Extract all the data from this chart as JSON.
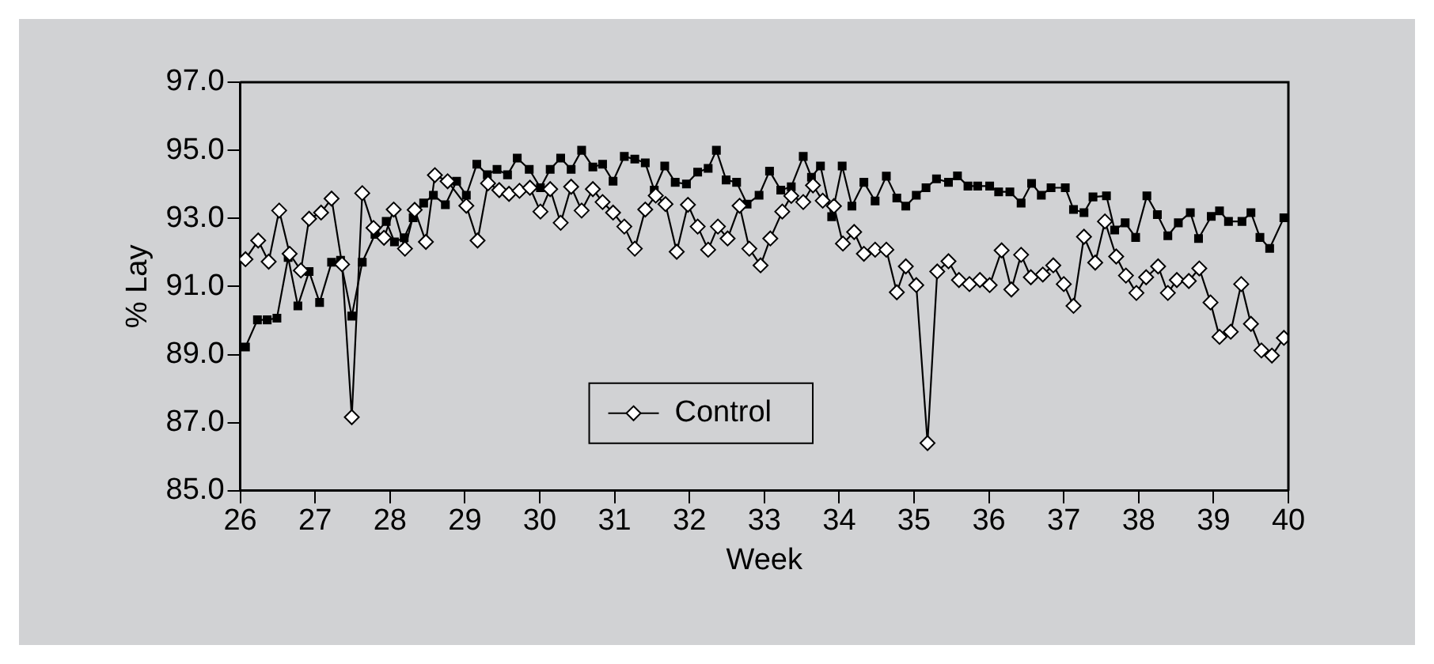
{
  "chart_data": {
    "type": "line",
    "xlabel": "Week",
    "ylabel": "% Lay",
    "xlim": [
      26,
      40
    ],
    "xticks": [
      26,
      27,
      28,
      29,
      30,
      31,
      32,
      33,
      34,
      35,
      36,
      37,
      38,
      39,
      40
    ],
    "ylim": [
      85,
      97
    ],
    "yticks": [
      {
        "value": 85,
        "label": "85.0"
      },
      {
        "value": 87,
        "label": "87.0"
      },
      {
        "value": 89,
        "label": "89.0"
      },
      {
        "value": 91,
        "label": "91.0"
      },
      {
        "value": 93,
        "label": "93.0"
      },
      {
        "value": 95,
        "label": "95.0"
      },
      {
        "value": 97,
        "label": "97.0"
      }
    ],
    "grid": false,
    "legend": "bottom",
    "line_style": "solid",
    "series": [
      {
        "name": "Control",
        "color": "#000000",
        "marker": "diamond",
        "x": [
          26.07,
          26.24,
          26.38,
          26.52,
          26.66,
          26.81,
          26.92,
          27.08,
          27.22,
          27.36,
          27.49,
          27.63,
          27.78,
          27.92,
          28.05,
          28.2,
          28.33,
          28.48,
          28.6,
          28.77,
          29.02,
          29.17,
          29.31,
          29.46,
          29.59,
          29.73,
          29.87,
          30.01,
          30.14,
          30.28,
          30.42,
          30.56,
          30.71,
          30.84,
          30.98,
          31.13,
          31.27,
          31.41,
          31.55,
          31.68,
          31.83,
          31.98,
          32.11,
          32.25,
          32.38,
          32.51,
          32.67,
          32.8,
          32.95,
          33.08,
          33.24,
          33.36,
          33.52,
          33.65,
          33.78,
          33.93,
          34.05,
          34.2,
          34.33,
          34.48,
          34.63,
          34.77,
          34.89,
          35.03,
          35.18,
          35.31,
          35.46,
          35.6,
          35.74,
          35.88,
          36.01,
          36.17,
          36.3,
          36.43,
          36.56,
          36.72,
          36.86,
          37,
          37.13,
          37.27,
          37.42,
          37.55,
          37.7,
          37.83,
          37.97,
          38.1,
          38.26,
          38.39,
          38.51,
          38.67,
          38.81,
          38.96,
          39.08,
          39.23,
          39.37,
          39.5,
          39.64,
          39.78,
          39.94
        ],
        "values": [
          91.8,
          92.35,
          91.73,
          93.23,
          91.96,
          91.47,
          92.99,
          93.17,
          93.58,
          91.65,
          87.16,
          93.74,
          92.72,
          92.43,
          93.26,
          92.11,
          93.25,
          92.31,
          94.27,
          94.09,
          93.37,
          92.35,
          94.03,
          93.83,
          93.72,
          93.81,
          93.9,
          93.2,
          93.86,
          92.87,
          93.93,
          93.23,
          93.86,
          93.48,
          93.17,
          92.76,
          92.11,
          93.26,
          93.67,
          93.42,
          92.02,
          93.4,
          92.76,
          92.08,
          92.76,
          92.41,
          93.37,
          92.11,
          91.62,
          92.41,
          93.2,
          93.66,
          93.48,
          93.97,
          93.52,
          93.36,
          92.26,
          92.6,
          91.96,
          92.08,
          92.08,
          90.83,
          91.59,
          91.04,
          86.4,
          91.44,
          91.74,
          91.19,
          91.07,
          91.19,
          91.04,
          92.06,
          90.91,
          91.93,
          91.27,
          91.35,
          91.62,
          91.07,
          90.43,
          92.46,
          91.7,
          92.91,
          91.88,
          91.32,
          90.81,
          91.27,
          91.59,
          90.81,
          91.19,
          91.16,
          91.53,
          90.53,
          89.52,
          89.67,
          91.07,
          89.9,
          89.12,
          88.97,
          89.49
        ]
      },
      {
        "color": "#000000",
        "marker": "square",
        "x": [
          26.07,
          26.23,
          26.36,
          26.49,
          26.64,
          26.77,
          26.92,
          27.06,
          27.22,
          27.34,
          27.49,
          27.63,
          27.8,
          27.95,
          28.06,
          28.19,
          28.31,
          28.45,
          28.58,
          28.74,
          28.89,
          29.02,
          29.16,
          29.3,
          29.43,
          29.57,
          29.7,
          29.86,
          30.01,
          30.14,
          30.28,
          30.42,
          30.56,
          30.71,
          30.84,
          30.98,
          31.13,
          31.27,
          31.41,
          31.53,
          31.67,
          31.81,
          31.96,
          32.11,
          32.25,
          32.36,
          32.49,
          32.63,
          32.77,
          32.93,
          33.07,
          33.22,
          33.36,
          33.52,
          33.63,
          33.75,
          33.9,
          34.04,
          34.17,
          34.33,
          34.48,
          34.63,
          34.77,
          34.89,
          35.03,
          35.16,
          35.3,
          35.46,
          35.58,
          35.72,
          35.85,
          36.01,
          36.13,
          36.28,
          36.43,
          36.57,
          36.7,
          36.83,
          37.02,
          37.13,
          37.27,
          37.39,
          37.57,
          37.68,
          37.82,
          37.96,
          38.11,
          38.25,
          38.39,
          38.53,
          38.69,
          38.8,
          38.97,
          39.08,
          39.2,
          39.38,
          39.5,
          39.62,
          39.75,
          39.94
        ],
        "values": [
          89.22,
          90.02,
          90.02,
          90.07,
          91.85,
          90.43,
          91.44,
          90.53,
          91.71,
          91.77,
          90.13,
          91.71,
          92.53,
          92.91,
          92.31,
          92.43,
          93.02,
          93.45,
          93.68,
          93.4,
          94.09,
          93.68,
          94.59,
          94.28,
          94.44,
          94.28,
          94.77,
          94.44,
          93.9,
          94.44,
          94.77,
          94.44,
          95,
          94.51,
          94.59,
          94.09,
          94.82,
          94.74,
          94.63,
          93.83,
          94.54,
          94.06,
          94.01,
          94.36,
          94.47,
          95,
          94.13,
          94.06,
          93.42,
          93.68,
          94.39,
          93.83,
          93.93,
          94.82,
          94.21,
          94.54,
          93.05,
          94.54,
          93.36,
          94.06,
          93.51,
          94.24,
          93.6,
          93.36,
          93.68,
          93.9,
          94.16,
          94.06,
          94.25,
          93.95,
          93.95,
          93.95,
          93.78,
          93.78,
          93.45,
          94.03,
          93.68,
          93.9,
          93.9,
          93.26,
          93.17,
          93.63,
          93.66,
          92.66,
          92.87,
          92.44,
          93.66,
          93.11,
          92.49,
          92.87,
          93.17,
          92.41,
          93.06,
          93.22,
          92.91,
          92.91,
          93.17,
          92.44,
          92.12,
          93.02
        ]
      }
    ]
  }
}
